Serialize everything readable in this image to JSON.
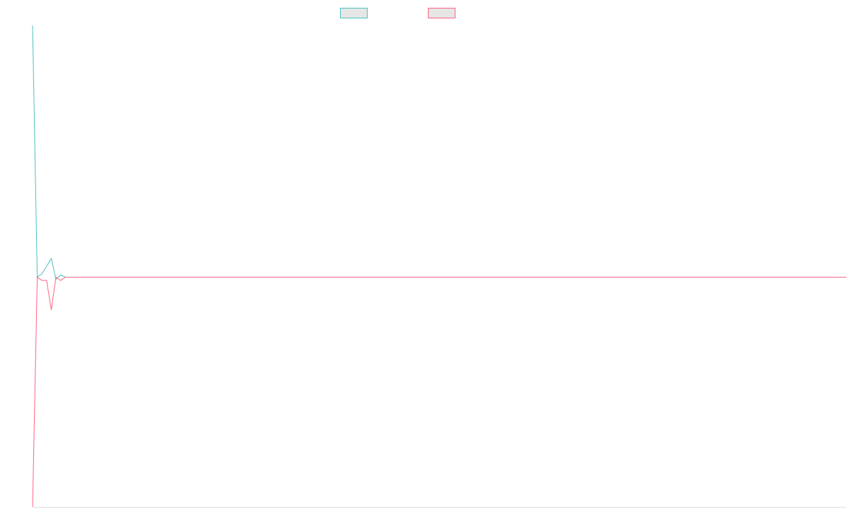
{
  "chart_data": {
    "type": "line",
    "title": "",
    "xlabel": "",
    "ylabel": "",
    "grid": false,
    "legend_position": "top",
    "x_count": 175,
    "ylim": [
      -2.1,
      2.3
    ],
    "series": [
      {
        "name": "",
        "color": "#4bc0c0",
        "fill": "#e6e6e6",
        "values": [
          2.3,
          0.0,
          0.03,
          0.1,
          0.17,
          -0.02,
          0.02,
          0.0,
          0.0,
          0.0
        ]
      },
      {
        "name": "",
        "color": "#ff6384",
        "fill": "#e6e6e6",
        "values": [
          -2.1,
          0.0,
          -0.03,
          -0.03,
          -0.3,
          0.0,
          -0.03,
          0.0,
          0.0,
          0.0
        ]
      }
    ]
  }
}
